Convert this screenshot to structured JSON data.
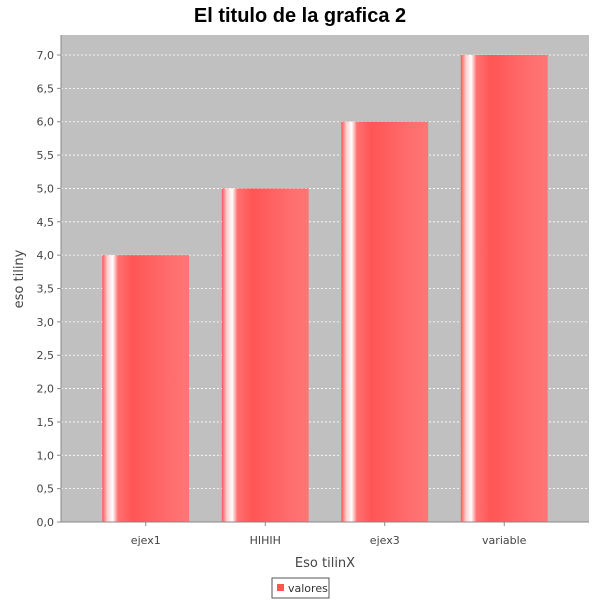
{
  "chart_data": {
    "type": "bar",
    "title": "El titulo de la grafica 2",
    "xlabel": "Eso tilinX",
    "ylabel": "eso tiliny",
    "categories": [
      "ejex1",
      "HIHIH",
      "ejex3",
      "variable"
    ],
    "series": [
      {
        "name": "valores",
        "values": [
          4.0,
          5.0,
          6.0,
          7.0
        ]
      }
    ],
    "ylim": [
      0,
      7.3
    ],
    "yticks": [
      "0,0",
      "0,5",
      "1,0",
      "1,5",
      "2,0",
      "2,5",
      "3,0",
      "3,5",
      "4,0",
      "4,5",
      "5,0",
      "5,5",
      "6,0",
      "6,5",
      "7,0"
    ],
    "grid": true,
    "legend_position": "bottom-center"
  },
  "colors": {
    "plot_background": "#c0c0c0",
    "bar_fill": "#ff5555",
    "gridline": "#ffffff",
    "axis": "#888888"
  }
}
